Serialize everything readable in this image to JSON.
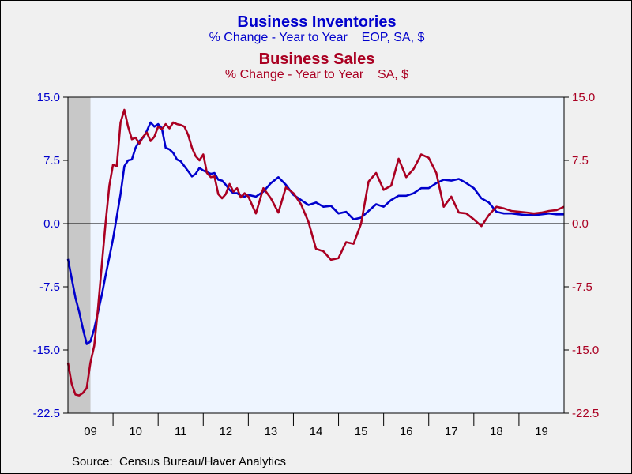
{
  "titles": {
    "inventories_title": "Business Inventories",
    "inventories_subtitle": "% Change - Year to Year    EOP, SA, $",
    "sales_title": "Business Sales",
    "sales_subtitle": "% Change - Year to Year    SA, $"
  },
  "source": "Source:  Census Bureau/Haver Analytics",
  "colors": {
    "inventories": "#0000cc",
    "sales": "#aa0022",
    "plot_background": "#eef5ff",
    "recession_shade": "#c8c8c8",
    "frame_background": "#f0f0f0"
  },
  "chart_data": {
    "type": "line",
    "x_unit": "year",
    "xlim": [
      2009.0,
      2020.0
    ],
    "x_tick_labels": [
      "09",
      "10",
      "11",
      "12",
      "13",
      "14",
      "15",
      "16",
      "17",
      "18",
      "19"
    ],
    "ylim": [
      -22.5,
      15.0
    ],
    "y_ticks_left": [
      "15.0",
      "7.5",
      "0.0",
      "-7.5",
      "-15.0",
      "-22.5"
    ],
    "y_ticks_right": [
      "15.0",
      "7.5",
      "0.0",
      "-7.5",
      "-15.0",
      "-22.5"
    ],
    "y_tick_values": [
      15.0,
      7.5,
      0.0,
      -7.5,
      -15.0,
      -22.5
    ],
    "zero_line": true,
    "grid": false,
    "recession_shading": [
      2009.0,
      2009.5
    ],
    "series": [
      {
        "name": "Business Inventories",
        "axis": "left",
        "x": [
          2009.0,
          2009.083,
          2009.167,
          2009.25,
          2009.333,
          2009.417,
          2009.5,
          2009.583,
          2009.667,
          2009.75,
          2009.833,
          2009.917,
          2010.0,
          2010.083,
          2010.167,
          2010.25,
          2010.333,
          2010.417,
          2010.5,
          2010.583,
          2010.667,
          2010.75,
          2010.833,
          2010.917,
          2011.0,
          2011.083,
          2011.167,
          2011.25,
          2011.333,
          2011.417,
          2011.5,
          2011.583,
          2011.667,
          2011.75,
          2011.833,
          2011.917,
          2012.0,
          2012.083,
          2012.167,
          2012.25,
          2012.333,
          2012.417,
          2012.5,
          2012.583,
          2012.667,
          2012.75,
          2012.833,
          2012.917,
          2013.0,
          2013.167,
          2013.333,
          2013.5,
          2013.667,
          2013.833,
          2014.0,
          2014.167,
          2014.333,
          2014.5,
          2014.667,
          2014.833,
          2015.0,
          2015.167,
          2015.333,
          2015.5,
          2015.667,
          2015.833,
          2016.0,
          2016.167,
          2016.333,
          2016.5,
          2016.667,
          2016.833,
          2017.0,
          2017.167,
          2017.333,
          2017.5,
          2017.667,
          2017.833,
          2018.0,
          2018.167,
          2018.333,
          2018.5,
          2018.667,
          2018.833,
          2019.0,
          2019.167,
          2019.333,
          2019.5,
          2019.667,
          2019.833,
          2019.917,
          2020.0
        ],
        "y": [
          -4.2,
          -6.5,
          -8.8,
          -10.5,
          -12.5,
          -14.3,
          -14.0,
          -12.5,
          -10.5,
          -8.5,
          -6.2,
          -4.0,
          -1.8,
          0.8,
          3.5,
          6.8,
          7.5,
          7.6,
          9.0,
          9.8,
          10.2,
          11.0,
          12.0,
          11.5,
          11.8,
          11.3,
          9.0,
          8.8,
          8.4,
          7.6,
          7.4,
          6.8,
          6.2,
          5.6,
          5.9,
          6.6,
          6.3,
          6.1,
          5.9,
          6.0,
          5.2,
          5.1,
          4.6,
          4.0,
          3.6,
          3.6,
          3.3,
          3.2,
          3.4,
          3.2,
          3.8,
          4.8,
          5.5,
          4.6,
          3.4,
          2.8,
          2.2,
          2.5,
          2.0,
          2.1,
          1.2,
          1.4,
          0.5,
          0.7,
          1.5,
          2.3,
          2.0,
          2.8,
          3.3,
          3.3,
          3.6,
          4.2,
          4.2,
          4.8,
          5.2,
          5.1,
          5.3,
          4.8,
          4.2,
          3.0,
          2.5,
          1.4,
          1.2,
          1.2,
          1.1,
          1.0,
          1.0,
          1.1,
          1.2,
          1.1,
          1.1,
          1.1
        ],
        "note_unused": ""
      },
      {
        "name": "Business Sales",
        "axis": "right",
        "x": [
          2009.0,
          2009.083,
          2009.167,
          2009.25,
          2009.333,
          2009.417,
          2009.5,
          2009.583,
          2009.667,
          2009.75,
          2009.833,
          2009.917,
          2010.0,
          2010.083,
          2010.167,
          2010.25,
          2010.333,
          2010.417,
          2010.5,
          2010.583,
          2010.667,
          2010.75,
          2010.833,
          2010.917,
          2011.0,
          2011.083,
          2011.167,
          2011.25,
          2011.333,
          2011.417,
          2011.5,
          2011.583,
          2011.667,
          2011.75,
          2011.833,
          2011.917,
          2012.0,
          2012.083,
          2012.167,
          2012.25,
          2012.333,
          2012.417,
          2012.5,
          2012.583,
          2012.667,
          2012.75,
          2012.833,
          2012.917,
          2013.0,
          2013.167,
          2013.333,
          2013.5,
          2013.667,
          2013.833,
          2014.0,
          2014.167,
          2014.333,
          2014.5,
          2014.667,
          2014.833,
          2015.0,
          2015.167,
          2015.333,
          2015.5,
          2015.667,
          2015.833,
          2016.0,
          2016.167,
          2016.333,
          2016.5,
          2016.667,
          2016.833,
          2017.0,
          2017.167,
          2017.333,
          2017.5,
          2017.667,
          2017.833,
          2018.0,
          2018.167,
          2018.333,
          2018.5,
          2018.667,
          2018.833,
          2019.0,
          2019.167,
          2019.333,
          2019.5,
          2019.667,
          2019.833,
          2019.917,
          2020.0
        ],
        "y": [
          -16.5,
          -19.0,
          -20.3,
          -20.4,
          -20.1,
          -19.5,
          -16.5,
          -14.5,
          -10.0,
          -5.0,
          0.0,
          4.5,
          7.0,
          6.8,
          12.0,
          13.5,
          11.5,
          10.0,
          10.2,
          9.5,
          10.3,
          10.8,
          9.8,
          10.3,
          11.5,
          11.2,
          11.8,
          11.3,
          12.0,
          11.8,
          11.7,
          11.5,
          10.5,
          9.0,
          8.0,
          7.5,
          8.2,
          6.0,
          5.5,
          5.6,
          3.5,
          3.0,
          3.5,
          4.7,
          3.8,
          4.2,
          3.1,
          3.6,
          3.2,
          1.2,
          4.2,
          3.0,
          1.3,
          4.3,
          3.6,
          2.3,
          0.2,
          -3.0,
          -3.3,
          -4.3,
          -4.1,
          -2.2,
          -2.4,
          0.0,
          5.0,
          6.0,
          4.0,
          4.5,
          7.7,
          5.5,
          6.5,
          8.2,
          7.8,
          6.0,
          2.0,
          3.2,
          1.3,
          1.2,
          0.5,
          -0.3,
          1.0,
          2.0,
          1.8,
          1.5,
          1.4,
          1.3,
          1.2,
          1.3,
          1.5,
          1.6,
          1.8,
          2.0
        ]
      }
    ]
  }
}
